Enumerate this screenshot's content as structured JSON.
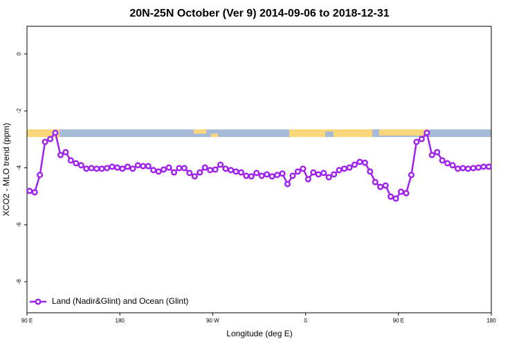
{
  "chart_data": {
    "type": "line",
    "title": "20N-25N October (Ver 9)   2014-09-06 to 2018-12-31",
    "xlabel": "Longitude (deg E)",
    "ylabel": "XCO2 - MLO trend (ppm)",
    "xlim": [
      90,
      540
    ],
    "xticks": [
      {
        "value": 90,
        "label": "90 E"
      },
      {
        "value": 180,
        "label": "180"
      },
      {
        "value": 270,
        "label": "90 W"
      },
      {
        "value": 360,
        "label": "0"
      },
      {
        "value": 450,
        "label": "90 E"
      },
      {
        "value": 540,
        "label": "180"
      }
    ],
    "ylim": [
      -9.09,
      0.97
    ],
    "yticks": [
      0,
      -2,
      -4,
      -6,
      -8
    ],
    "legend": "bottom-left",
    "x": [
      92.5,
      97.5,
      102.5,
      107.5,
      112.5,
      117.5,
      122.5,
      127.5,
      132.5,
      137.5,
      142.5,
      147.5,
      152.5,
      157.5,
      162.5,
      167.5,
      172.5,
      177.5,
      182.5,
      187.5,
      192.5,
      197.5,
      202.5,
      207.5,
      212.5,
      217.5,
      222.5,
      227.5,
      232.5,
      237.5,
      242.5,
      247.5,
      252.5,
      257.5,
      262.5,
      267.5,
      272.5,
      277.5,
      282.5,
      287.5,
      292.5,
      297.5,
      302.5,
      307.5,
      312.5,
      317.5,
      322.5,
      327.5,
      332.5,
      337.5,
      342.5,
      347.5,
      352.5,
      357.5,
      362.5,
      367.5,
      372.5,
      377.5,
      382.5,
      387.5,
      392.5,
      397.5,
      402.5,
      407.5,
      412.5,
      417.5,
      422.5,
      427.5,
      432.5,
      437.5,
      442.5,
      447.5,
      452.5,
      457.5,
      462.5,
      467.5,
      472.5,
      477.5,
      482.5,
      487.5,
      492.5,
      497.5,
      502.5,
      507.5,
      512.5,
      517.5,
      522.5,
      527.5,
      532.5,
      537.5
    ],
    "series": [
      {
        "name": "Land (Nadir&Glint) and Ocean (Glint)",
        "color": "#a020f0",
        "values": [
          -4.81,
          -4.86,
          -4.25,
          -3.09,
          -2.99,
          -2.77,
          -3.55,
          -3.45,
          -3.74,
          -3.84,
          -3.91,
          -4.03,
          -4.01,
          -4.03,
          -4.03,
          -4.01,
          -3.96,
          -3.99,
          -4.03,
          -3.96,
          -4.03,
          -3.91,
          -3.94,
          -3.94,
          -4.08,
          -4.13,
          -4.06,
          -3.99,
          -4.16,
          -4.01,
          -4.01,
          -4.18,
          -4.3,
          -4.16,
          -3.99,
          -4.08,
          -4.06,
          -3.89,
          -4.03,
          -4.08,
          -4.13,
          -4.16,
          -4.28,
          -4.3,
          -4.18,
          -4.28,
          -4.23,
          -4.3,
          -4.25,
          -4.2,
          -4.57,
          -4.28,
          -4.13,
          -4.03,
          -4.4,
          -4.16,
          -4.23,
          -4.18,
          -4.33,
          -4.23,
          -4.08,
          -4.03,
          -3.99,
          -3.89,
          -3.79,
          -3.82,
          -4.13,
          -4.5,
          -4.67,
          -4.62,
          -5.01,
          -5.08,
          -4.84,
          -4.89,
          -4.25,
          -3.09,
          -2.99,
          -2.77,
          -3.55,
          -3.45,
          -3.74,
          -3.84,
          -3.91,
          -4.03,
          -4.01,
          -4.03,
          -4.01,
          -3.99,
          -3.96,
          -3.96
        ]
      }
    ]
  }
}
